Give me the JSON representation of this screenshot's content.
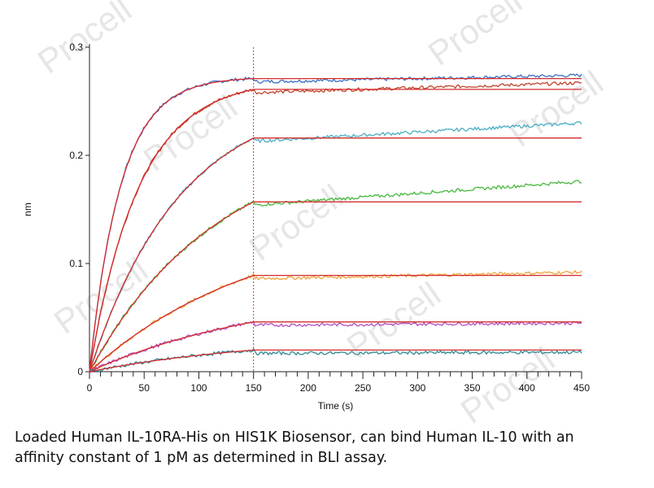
{
  "watermark": "Procell",
  "caption": {
    "line1": "Loaded Human IL-10RA-His on HIS1K Biosensor, can bind Human IL-10 with an",
    "line2": "affinity constant of 1 pM as determined in BLI assay."
  },
  "chart_data": {
    "type": "line",
    "title": "",
    "xlabel": "Time (s)",
    "ylabel": "nm",
    "xlim": [
      0,
      450
    ],
    "ylim": [
      0,
      0.3
    ],
    "x_ticks": [
      0,
      50,
      100,
      150,
      200,
      250,
      300,
      350,
      400,
      450
    ],
    "y_ticks": [
      0,
      0.1,
      0.2,
      0.3
    ],
    "y_tick_labels": [
      "0",
      "0.1",
      "0.2",
      "0.3"
    ],
    "association_end": 150,
    "grid": false,
    "legend": "none",
    "fit_color": "#d42b2b",
    "series": [
      {
        "color": "#3b6fc4",
        "plateau": 0.271,
        "k": 0.035,
        "drift": 0.006
      },
      {
        "color": "#c0442b",
        "plateau": 0.261,
        "k": 0.022,
        "drift": 0.009
      },
      {
        "color": "#4aaec4",
        "plateau": 0.216,
        "k": 0.012,
        "drift": 0.017
      },
      {
        "color": "#45b83a",
        "plateau": 0.157,
        "k": 0.0085,
        "drift": 0.022
      },
      {
        "color": "#f0a23a",
        "plateau": 0.089,
        "k": 0.0065,
        "drift": 0.006
      },
      {
        "color": "#b34fbf",
        "plateau": 0.046,
        "k": 0.006,
        "drift": 0.002
      },
      {
        "color": "#2e8a96",
        "plateau": 0.02,
        "k": 0.006,
        "drift": 0.001
      }
    ]
  }
}
